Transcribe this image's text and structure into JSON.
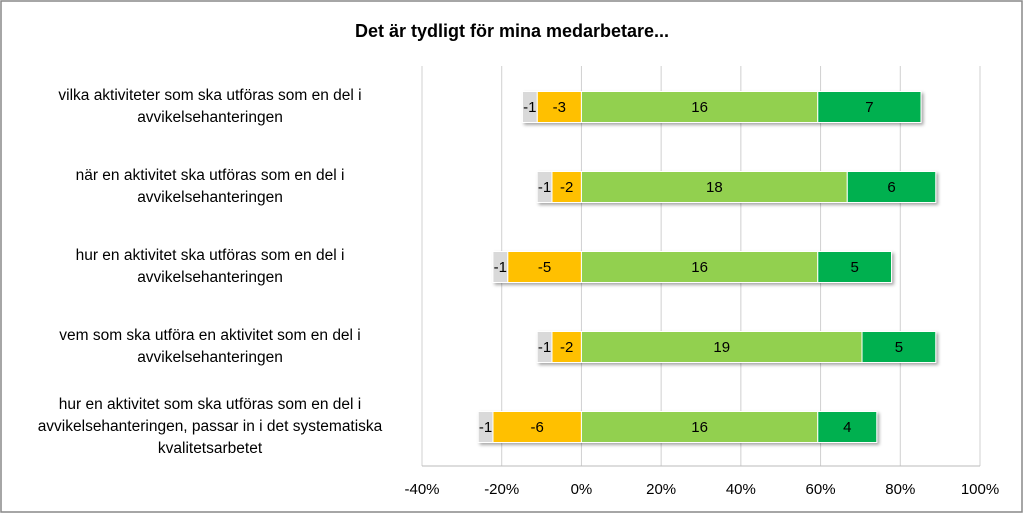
{
  "chart_data": {
    "type": "diverging-bar",
    "title": "Det är tydligt för mina medarbetare...",
    "categories": [
      "vilka aktiviteter som ska utföras som en del i avvikelsehanteringen",
      "när en aktivitet ska utföras som en del i avvikelsehanteringen",
      "hur en aktivitet ska utföras som en del i avvikelsehanteringen",
      "vem som ska utföra en aktivitet som en del i avvikelsehanteringen",
      "hur en aktivitet som ska utföras som en del i avvikelsehanteringen, passar in i det systematiska kvalitetsarbetet"
    ],
    "series": [
      {
        "color": "#ffc000",
        "values": [
          -11.1,
          -7.4,
          -18.5,
          -7.4,
          -22.2
        ],
        "value_labels": [
          "-3",
          "-2",
          "-5",
          "-2",
          "-6"
        ]
      },
      {
        "color": "#d9d9d9",
        "values": [
          -3.7,
          -3.7,
          -3.7,
          -3.7,
          -3.7
        ],
        "value_labels": [
          "-1",
          "-1",
          "-1",
          "-1",
          "-1"
        ]
      },
      {
        "color": "#92d050",
        "values": [
          59.3,
          66.7,
          59.3,
          70.4,
          59.3
        ],
        "value_labels": [
          "16",
          "18",
          "16",
          "19",
          "16"
        ]
      },
      {
        "color": "#00b050",
        "values": [
          25.9,
          22.2,
          18.5,
          18.5,
          14.8
        ],
        "value_labels": [
          "7",
          "6",
          "5",
          "5",
          "4"
        ]
      }
    ],
    "xlim": [
      -40,
      100
    ],
    "xticks": [
      {
        "value": -40,
        "label": "-40%"
      },
      {
        "value": -20,
        "label": "-20%"
      },
      {
        "value": 0,
        "label": "0%"
      },
      {
        "value": 20,
        "label": "20%"
      },
      {
        "value": 40,
        "label": "40%"
      },
      {
        "value": 60,
        "label": "60%"
      },
      {
        "value": 80,
        "label": "80%"
      },
      {
        "value": 100,
        "label": "100%"
      }
    ],
    "grid": true
  }
}
